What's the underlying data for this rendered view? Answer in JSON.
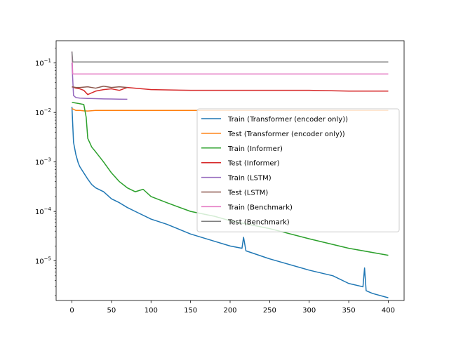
{
  "chart_data": {
    "type": "line",
    "title": "",
    "xlabel": "",
    "ylabel": "",
    "xlim": [
      -20,
      420
    ],
    "ylim_log10": [
      -5.8,
      -0.55
    ],
    "yscale": "log",
    "grid": false,
    "legend_position": "center-right",
    "x_ticks": [
      0,
      50,
      100,
      150,
      200,
      250,
      300,
      350,
      400
    ],
    "y_ticks": [
      {
        "exp": -5,
        "base": "10",
        "sup": "−5"
      },
      {
        "exp": -4,
        "base": "10",
        "sup": "−4"
      },
      {
        "exp": -3,
        "base": "10",
        "sup": "−3"
      },
      {
        "exp": -2,
        "base": "10",
        "sup": "−2"
      },
      {
        "exp": -1,
        "base": "10",
        "sup": "−1"
      }
    ],
    "series": [
      {
        "name": "Train (Transformer (encoder only))",
        "color": "#1f77b4",
        "x": [
          0,
          2,
          5,
          8,
          10,
          15,
          20,
          25,
          30,
          40,
          50,
          60,
          70,
          80,
          100,
          120,
          150,
          180,
          200,
          215,
          217,
          220,
          250,
          300,
          330,
          350,
          368,
          370,
          372,
          380,
          400
        ],
        "y": [
          0.013,
          0.0025,
          0.0014,
          0.00095,
          0.0008,
          0.0006,
          0.00045,
          0.00035,
          0.0003,
          0.00025,
          0.00018,
          0.00015,
          0.00012,
          0.0001,
          7e-05,
          5.5e-05,
          3.5e-05,
          2.5e-05,
          2e-05,
          1.8e-05,
          3e-05,
          1.6e-05,
          1.1e-05,
          6.5e-06,
          5e-06,
          3.5e-06,
          3e-06,
          7.2e-06,
          2.5e-06,
          2.2e-06,
          1.8e-06
        ]
      },
      {
        "name": "Test (Transformer (encoder only))",
        "color": "#ff7f0e",
        "x": [
          0,
          5,
          10,
          15,
          20,
          30,
          50,
          100,
          150,
          200,
          250,
          300,
          350,
          400
        ],
        "y": [
          0.012,
          0.011,
          0.011,
          0.0108,
          0.0107,
          0.011,
          0.011,
          0.011,
          0.011,
          0.011,
          0.011,
          0.011,
          0.011,
          0.011
        ]
      },
      {
        "name": "Train (Informer)",
        "color": "#2ca02c",
        "x": [
          0,
          5,
          10,
          15,
          18,
          20,
          25,
          30,
          40,
          50,
          60,
          70,
          80,
          90,
          100,
          120,
          150,
          180,
          200,
          250,
          300,
          350,
          400
        ],
        "y": [
          0.016,
          0.0155,
          0.015,
          0.0145,
          0.008,
          0.003,
          0.002,
          0.0016,
          0.001,
          0.0006,
          0.0004,
          0.0003,
          0.00025,
          0.00028,
          0.0002,
          0.00015,
          0.0001,
          8e-05,
          6.5e-05,
          4.5e-05,
          2.8e-05,
          1.8e-05,
          1.3e-05
        ]
      },
      {
        "name": "Test (Informer)",
        "color": "#d62728",
        "x": [
          0,
          5,
          10,
          15,
          20,
          30,
          40,
          50,
          60,
          70,
          100,
          150,
          200,
          250,
          300,
          350,
          400
        ],
        "y": [
          0.033,
          0.031,
          0.03,
          0.028,
          0.023,
          0.027,
          0.029,
          0.03,
          0.028,
          0.032,
          0.029,
          0.028,
          0.028,
          0.028,
          0.028,
          0.027,
          0.027
        ]
      },
      {
        "name": "Train (LSTM)",
        "color": "#9467bd",
        "x": [
          0,
          2,
          5,
          10,
          20,
          30,
          40,
          50,
          60,
          70
        ],
        "y": [
          0.1,
          0.022,
          0.02,
          0.0195,
          0.0192,
          0.019,
          0.0188,
          0.0187,
          0.0186,
          0.0185
        ]
      },
      {
        "name": "Test (LSTM)",
        "color": "#8c564b",
        "x": [
          0,
          5,
          10,
          20,
          30,
          40,
          50,
          60,
          70
        ],
        "y": [
          0.033,
          0.032,
          0.032,
          0.033,
          0.031,
          0.034,
          0.032,
          0.033,
          0.032
        ]
      },
      {
        "name": "Train (Benchmark)",
        "color": "#e377c2",
        "x": [
          0,
          1,
          2,
          100,
          200,
          300,
          400
        ],
        "y": [
          0.17,
          0.06,
          0.06,
          0.06,
          0.06,
          0.06,
          0.06
        ]
      },
      {
        "name": "Test (Benchmark)",
        "color": "#7f7f7f",
        "x": [
          0,
          1,
          2,
          100,
          200,
          300,
          400
        ],
        "y": [
          0.17,
          0.105,
          0.105,
          0.105,
          0.105,
          0.105,
          0.105
        ]
      }
    ]
  }
}
